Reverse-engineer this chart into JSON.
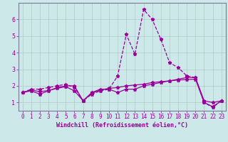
{
  "title": "",
  "xlabel": "Windchill (Refroidissement éolien,°C)",
  "bg_color": "#cce8e8",
  "line_color": "#990099",
  "grid_color": "#b0c8c8",
  "spine_color": "#7a7a9a",
  "x_values": [
    0,
    1,
    2,
    3,
    4,
    5,
    6,
    7,
    8,
    9,
    10,
    11,
    12,
    13,
    14,
    15,
    16,
    17,
    18,
    19,
    20,
    21,
    22,
    23
  ],
  "line1": [
    1.6,
    1.8,
    1.8,
    1.9,
    2.0,
    2.1,
    1.9,
    1.1,
    1.5,
    1.7,
    1.8,
    2.6,
    5.1,
    3.9,
    6.6,
    6.0,
    4.8,
    3.4,
    3.1,
    2.6,
    2.5,
    1.0,
    0.7,
    1.1
  ],
  "line2": [
    1.6,
    1.7,
    1.5,
    1.7,
    1.9,
    2.0,
    2.0,
    1.1,
    1.6,
    1.8,
    1.8,
    1.6,
    1.8,
    1.8,
    2.0,
    2.1,
    2.2,
    2.3,
    2.4,
    2.5,
    2.5,
    1.1,
    1.0,
    1.1
  ],
  "line3": [
    1.6,
    1.75,
    1.65,
    1.72,
    1.85,
    1.95,
    1.7,
    1.1,
    1.55,
    1.75,
    1.85,
    1.9,
    2.0,
    2.05,
    2.1,
    2.2,
    2.25,
    2.3,
    2.35,
    2.38,
    2.4,
    1.0,
    0.75,
    1.1
  ],
  "ylim": [
    0.5,
    7.0
  ],
  "yticks": [
    1,
    2,
    3,
    4,
    5,
    6
  ],
  "xlim": [
    -0.5,
    23.5
  ],
  "tick_fontsize": 5.5,
  "xlabel_fontsize": 6.0
}
